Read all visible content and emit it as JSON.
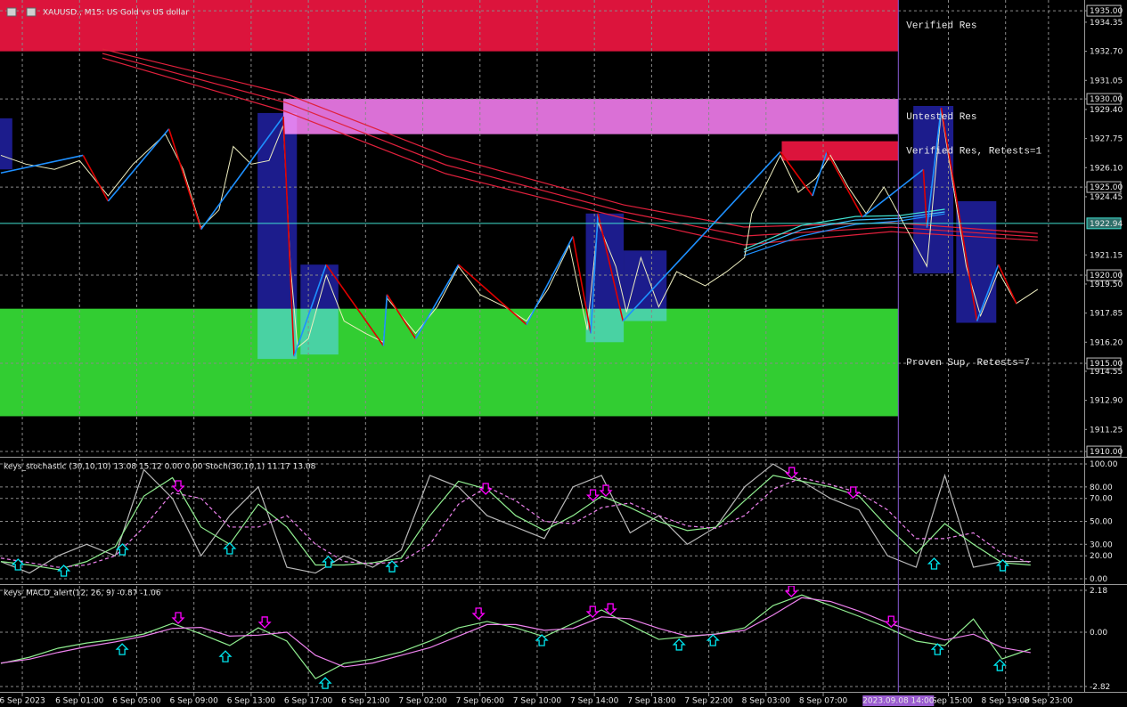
{
  "chart_data": [
    {
      "type": "line",
      "title": "XAUUSD., M15: US Gold vs US dollar",
      "xlim": [
        -1.56,
        74.25
      ],
      "xticks": [
        {
          "value": 0,
          "label": "6 Sep 2023"
        },
        {
          "value": 4,
          "label": "6 Sep 01:00"
        },
        {
          "value": 8,
          "label": "6 Sep 05:00"
        },
        {
          "value": 12,
          "label": "6 Sep 09:00"
        },
        {
          "value": 16,
          "label": "6 Sep 13:00"
        },
        {
          "value": 20,
          "label": "6 Sep 17:00"
        },
        {
          "value": 24,
          "label": "6 Sep 21:00"
        },
        {
          "value": 28,
          "label": "7 Sep 02:00"
        },
        {
          "value": 32,
          "label": "7 Sep 06:00"
        },
        {
          "value": 36,
          "label": "7 Sep 10:00"
        },
        {
          "value": 40,
          "label": "7 Sep 14:00"
        },
        {
          "value": 44,
          "label": "7 Sep 18:00"
        },
        {
          "value": 48,
          "label": "7 Sep 22:00"
        },
        {
          "value": 52,
          "label": "8 Sep 03:00"
        },
        {
          "value": 56,
          "label": "8 Sep 07:00"
        },
        {
          "value": 64.75,
          "label": "8 Sep 15:00"
        },
        {
          "value": 68.75,
          "label": "8 Sep 19:00"
        },
        {
          "value": 71.75,
          "label": "8 Sep 23:00"
        }
      ],
      "crosshair": {
        "value": 61.25,
        "label": "2023.09.08 14:00"
      },
      "ylim": [
        1909.75,
        1935.61
      ],
      "yticks": [
        {
          "value": 1935,
          "label": "1935.00"
        },
        {
          "value": 1930,
          "label": "1930.00"
        },
        {
          "value": 1925,
          "label": "1925.00"
        },
        {
          "value": 1920,
          "label": "1920.00"
        },
        {
          "value": 1915,
          "label": "1915.00"
        },
        {
          "value": 1910,
          "label": "1910.00"
        }
      ],
      "yticks_minor": [
        1934.35,
        {
          "value": 1932.7,
          "label": "1932.70"
        },
        1931.05,
        {
          "value": 1929.4,
          "label": "1929.40"
        },
        1927.75,
        {
          "value": 1926.1,
          "label": "1926.10"
        },
        1924.45,
        1921.15,
        {
          "value": 1919.5,
          "label": "1919.50"
        },
        1917.85,
        {
          "value": 1916.2,
          "label": "1916.20"
        },
        1914.55,
        {
          "value": 1912.9,
          "label": "1912.90"
        },
        1911.25
      ],
      "grid": true,
      "current_price": 1922.94,
      "current_price_color": "#40e0d0",
      "zones": [
        {
          "label": "Verified Res",
          "x": [
            -1.56,
            61.25
          ],
          "y": [
            1932.7,
            1935.61
          ],
          "color": "#dc143c"
        },
        {
          "label": "Untested Res",
          "x": [
            18.25,
            61.25
          ],
          "y": [
            1928.0,
            1930.0
          ],
          "color": "#da70d6"
        },
        {
          "label": "Verified Res, Retests=1",
          "x": [
            53.1,
            61.25
          ],
          "y": [
            1926.5,
            1927.6
          ],
          "color": "#dc143c"
        },
        {
          "label": "Proven Sup, Retests=7",
          "x": [
            -1.56,
            61.25
          ],
          "y": [
            1912.0,
            1918.1
          ],
          "color": "#32cd32"
        }
      ],
      "box_color": "#1c1c8c",
      "boxes": [
        {
          "x": [
            -1.56,
            -0.7
          ],
          "y": [
            1926.0,
            1928.9
          ]
        },
        {
          "x": [
            16.45,
            19.2
          ],
          "y": [
            1915.25,
            1929.2
          ]
        },
        {
          "x": [
            19.45,
            22.1
          ],
          "y": [
            1915.5,
            1920.6
          ]
        },
        {
          "x": [
            39.4,
            42.05
          ],
          "y": [
            1916.2,
            1923.5
          ]
        },
        {
          "x": [
            42.05,
            45.05
          ],
          "y": [
            1917.4,
            1921.4
          ]
        },
        {
          "x": [
            62.3,
            65.1
          ],
          "y": [
            1920.1,
            1929.6
          ]
        },
        {
          "x": [
            65.3,
            68.1
          ],
          "y": [
            1917.3,
            1924.2
          ]
        }
      ],
      "series": [
        {
          "color": "#e0203c",
          "x": [
            5.6,
            18.4,
            29.6,
            42.05,
            50.45,
            60.75,
            71
          ],
          "values": [
            1932.83,
            1930.3,
            1926.77,
            1923.99,
            1922.73,
            1922.98,
            1922.37
          ]
        },
        {
          "color": "#e0203c",
          "x": [
            5.6,
            18.4,
            29.6,
            42.05,
            50.45,
            60.75,
            71
          ],
          "values": [
            1932.58,
            1929.8,
            1926.26,
            1923.59,
            1922.22,
            1922.73,
            1922.17
          ]
        },
        {
          "color": "#e0203c",
          "x": [
            5.6,
            18.4,
            29.6,
            42.05,
            50.45,
            60.75,
            71
          ],
          "values": [
            1932.32,
            1929.29,
            1925.76,
            1923.23,
            1921.72,
            1922.47,
            1921.97
          ]
        },
        {
          "color": "#1e90ff",
          "x": [
            50.45,
            54.5,
            58.25,
            61.35,
            64.5
          ],
          "values": [
            1921.11,
            1922.22,
            1922.88,
            1923.08,
            1923.48
          ]
        },
        {
          "color": "#40c0ff",
          "x": [
            50.45,
            54.5,
            58.25,
            61.35,
            64.5
          ],
          "values": [
            1921.31,
            1922.58,
            1923.13,
            1923.23,
            1923.59
          ]
        },
        {
          "color": "#40e0d0",
          "x": [
            50.45,
            54.5,
            58.25,
            61.35,
            64.5
          ],
          "values": [
            1921.46,
            1922.83,
            1923.33,
            1923.38,
            1923.74
          ]
        }
      ],
      "price": {
        "color": "#eeeec0",
        "x": [
          -1.5,
          0.25,
          2.25,
          4,
          6,
          7.75,
          10,
          11.25,
          12.5,
          13.75,
          14.75,
          16,
          17.25,
          18.25,
          18.75,
          19.25,
          20,
          21.25,
          22.5,
          24,
          25.25,
          25.5,
          27.5,
          29,
          30.5,
          32,
          33.75,
          35.25,
          36.75,
          38.25,
          39.5,
          40.25,
          41.5,
          42.25,
          43.25,
          44.5,
          45.75,
          47.75,
          49.25,
          50.5,
          51,
          53,
          54.25,
          55.5,
          56.5,
          57.75,
          59,
          60.25,
          61.25,
          63.25,
          64.25,
          65,
          66,
          67,
          68.25,
          69.5,
          71
        ],
        "values": [
          1926.8,
          1926.3,
          1926.0,
          1926.5,
          1924.5,
          1926.3,
          1928.0,
          1926.0,
          1922.7,
          1923.7,
          1927.3,
          1926.3,
          1926.5,
          1928.5,
          1920.5,
          1915.9,
          1916.4,
          1920.0,
          1917.4,
          1916.7,
          1916.2,
          1918.7,
          1916.7,
          1918.2,
          1920.5,
          1918.9,
          1918.2,
          1917.4,
          1919.2,
          1921.7,
          1916.9,
          1923.0,
          1920.5,
          1917.9,
          1921.0,
          1918.2,
          1920.2,
          1919.4,
          1920.2,
          1921.0,
          1923.5,
          1926.8,
          1924.7,
          1925.5,
          1926.8,
          1925.0,
          1923.5,
          1925.0,
          1923.5,
          1920.5,
          1929.3,
          1925.5,
          1920.5,
          1917.7,
          1920.2,
          1918.4,
          1919.2
        ]
      },
      "zigzag": {
        "up_color": "#1e90ff",
        "down_color": "#e00000",
        "x": [
          -1.5,
          4.25,
          6,
          10.25,
          12.5,
          18.25,
          19,
          21.25,
          25.25,
          25.5,
          27.5,
          30.5,
          35.25,
          38.5,
          39.75,
          40.25,
          42,
          53,
          55.25,
          56.25,
          58.75,
          63,
          63.25,
          64.25,
          66.75,
          68.25,
          69.5
        ],
        "values": [
          1925.8,
          1926.8,
          1924.2,
          1928.3,
          1922.6,
          1929.0,
          1915.4,
          1920.6,
          1916.0,
          1918.9,
          1916.4,
          1920.6,
          1917.2,
          1922.2,
          1916.7,
          1923.5,
          1917.4,
          1927.0,
          1924.5,
          1927.0,
          1923.3,
          1926.0,
          1922.7,
          1929.5,
          1917.4,
          1920.6,
          1918.4
        ]
      }
    },
    {
      "type": "line",
      "title": "keys_stochastic (30,10,10) 13.08 15.12 0.00 0.00 Stoch(30,10,1) 11.17 13.08",
      "ylim": [
        -3.9,
        104.7
      ],
      "yticks": [
        {
          "value": 100,
          "label": "100.00"
        },
        {
          "value": 80,
          "label": "80.00"
        },
        {
          "value": 70,
          "label": "70.00"
        },
        {
          "value": 50,
          "label": "50.00"
        },
        {
          "value": 30,
          "label": "30.00"
        },
        {
          "value": 20,
          "label": "20.00"
        },
        {
          "value": 0,
          "label": "0.00"
        }
      ],
      "x": [
        -1.5,
        0.5,
        2.5,
        4.5,
        6.5,
        8.5,
        10.5,
        12.5,
        14.5,
        16.5,
        18.5,
        20.5,
        22.5,
        24.5,
        26.5,
        28.5,
        30.5,
        32.5,
        34.5,
        36.5,
        38.5,
        40.5,
        42.5,
        44.5,
        46.5,
        48.5,
        50.5,
        52.5,
        54.5,
        56.5,
        58.5,
        60.5,
        62.5,
        64.5,
        66.5,
        68.5,
        70.5
      ],
      "series": [
        {
          "color": "#b8b8b8",
          "values": [
            15,
            5,
            20,
            30,
            20,
            95,
            70,
            20,
            55,
            80,
            10,
            5,
            20,
            10,
            25,
            90,
            80,
            55,
            45,
            35,
            80,
            90,
            40,
            55,
            30,
            45,
            80,
            100,
            85,
            70,
            60,
            20,
            10,
            90,
            10,
            15,
            15
          ]
        },
        {
          "color": "#90ee90",
          "values": [
            15,
            12,
            8,
            15,
            28,
            72,
            88,
            45,
            30,
            65,
            45,
            12,
            12,
            14,
            18,
            55,
            85,
            78,
            55,
            42,
            55,
            72,
            62,
            50,
            42,
            45,
            68,
            90,
            85,
            80,
            72,
            45,
            22,
            48,
            30,
            14,
            12
          ]
        },
        {
          "color": "#ee82ee",
          "dash": true,
          "values": [
            18,
            14,
            10,
            12,
            20,
            45,
            75,
            70,
            45,
            45,
            55,
            30,
            15,
            13,
            15,
            30,
            65,
            80,
            68,
            50,
            48,
            62,
            66,
            55,
            46,
            44,
            55,
            78,
            88,
            82,
            75,
            60,
            35,
            35,
            40,
            22,
            14
          ]
        }
      ],
      "up_arrows": {
        "color": "#00e5ee",
        "x": [
          -0.3,
          2.9,
          7,
          14.5,
          21.4,
          25.85,
          63.75,
          68.55
        ],
        "values": [
          11.6,
          6.2,
          24.8,
          25.6,
          14,
          10,
          12.4,
          10.9
        ]
      },
      "down_arrows": {
        "color": "#ff00ff",
        "x": [
          10.9,
          32.4,
          39.9,
          40.8,
          53.8,
          58.1
        ],
        "values": [
          81.4,
          79.1,
          73.6,
          77.5,
          93,
          76
        ]
      }
    },
    {
      "type": "line",
      "title": "keys_MACD_alert(12, 26, 9) -0.87 -1.06",
      "ylim": [
        -3.1,
        2.41
      ],
      "yticks": [
        2.18,
        {
          "value": 0,
          "label": "0.00"
        },
        -2.82
      ],
      "x": [
        -1.5,
        0.5,
        2.5,
        4.5,
        6.5,
        8.5,
        10.5,
        12.5,
        14.5,
        16.5,
        18.5,
        20.5,
        22.5,
        24.5,
        26.5,
        28.5,
        30.5,
        32.5,
        34.5,
        36.5,
        38.5,
        40.5,
        42.5,
        44.5,
        46.5,
        48.5,
        50.5,
        52.5,
        54.5,
        56.5,
        58.5,
        60.5,
        62.5,
        64.5,
        66.5,
        68.5,
        70.5
      ],
      "series": [
        {
          "color": "#90ee90",
          "values": [
            -1.62,
            -1.3,
            -0.83,
            -0.56,
            -0.37,
            -0.09,
            0.46,
            -0.09,
            -0.69,
            0.23,
            -0.46,
            -2.41,
            -1.62,
            -1.39,
            -1.02,
            -0.46,
            0.23,
            0.56,
            0.23,
            -0.23,
            0.46,
            1.16,
            0.37,
            -0.37,
            -0.23,
            -0.09,
            0.23,
            1.39,
            1.94,
            1.39,
            0.83,
            0.23,
            -0.46,
            -0.69,
            0.69,
            -1.39,
            -0.87
          ]
        },
        {
          "color": "#ee82ee",
          "values": [
            -1.6,
            -1.4,
            -1.05,
            -0.75,
            -0.5,
            -0.2,
            0.2,
            0.25,
            -0.2,
            -0.15,
            0.0,
            -1.2,
            -1.8,
            -1.6,
            -1.2,
            -0.8,
            -0.2,
            0.4,
            0.4,
            0.1,
            0.2,
            0.8,
            0.7,
            0.2,
            -0.2,
            -0.1,
            0.1,
            0.9,
            1.8,
            1.6,
            1.1,
            0.5,
            0.0,
            -0.4,
            -0.1,
            -0.8,
            -1.06
          ]
        }
      ],
      "up_arrows": {
        "color": "#00e5ee",
        "x": [
          6.98,
          14.2,
          21.18,
          36.32,
          45.92,
          48.29,
          63.99,
          68.35
        ],
        "values": [
          -0.93,
          -1.3,
          -2.69,
          -0.46,
          -0.69,
          -0.46,
          -0.93,
          -1.76
        ]
      },
      "down_arrows": {
        "color": "#ff00ff",
        "x": [
          10.9,
          16.95,
          31.9,
          39.88,
          41.12,
          53.77,
          60.75
        ],
        "values": [
          0.79,
          0.56,
          1.02,
          1.11,
          1.25,
          2.18,
          0.6
        ]
      }
    }
  ]
}
